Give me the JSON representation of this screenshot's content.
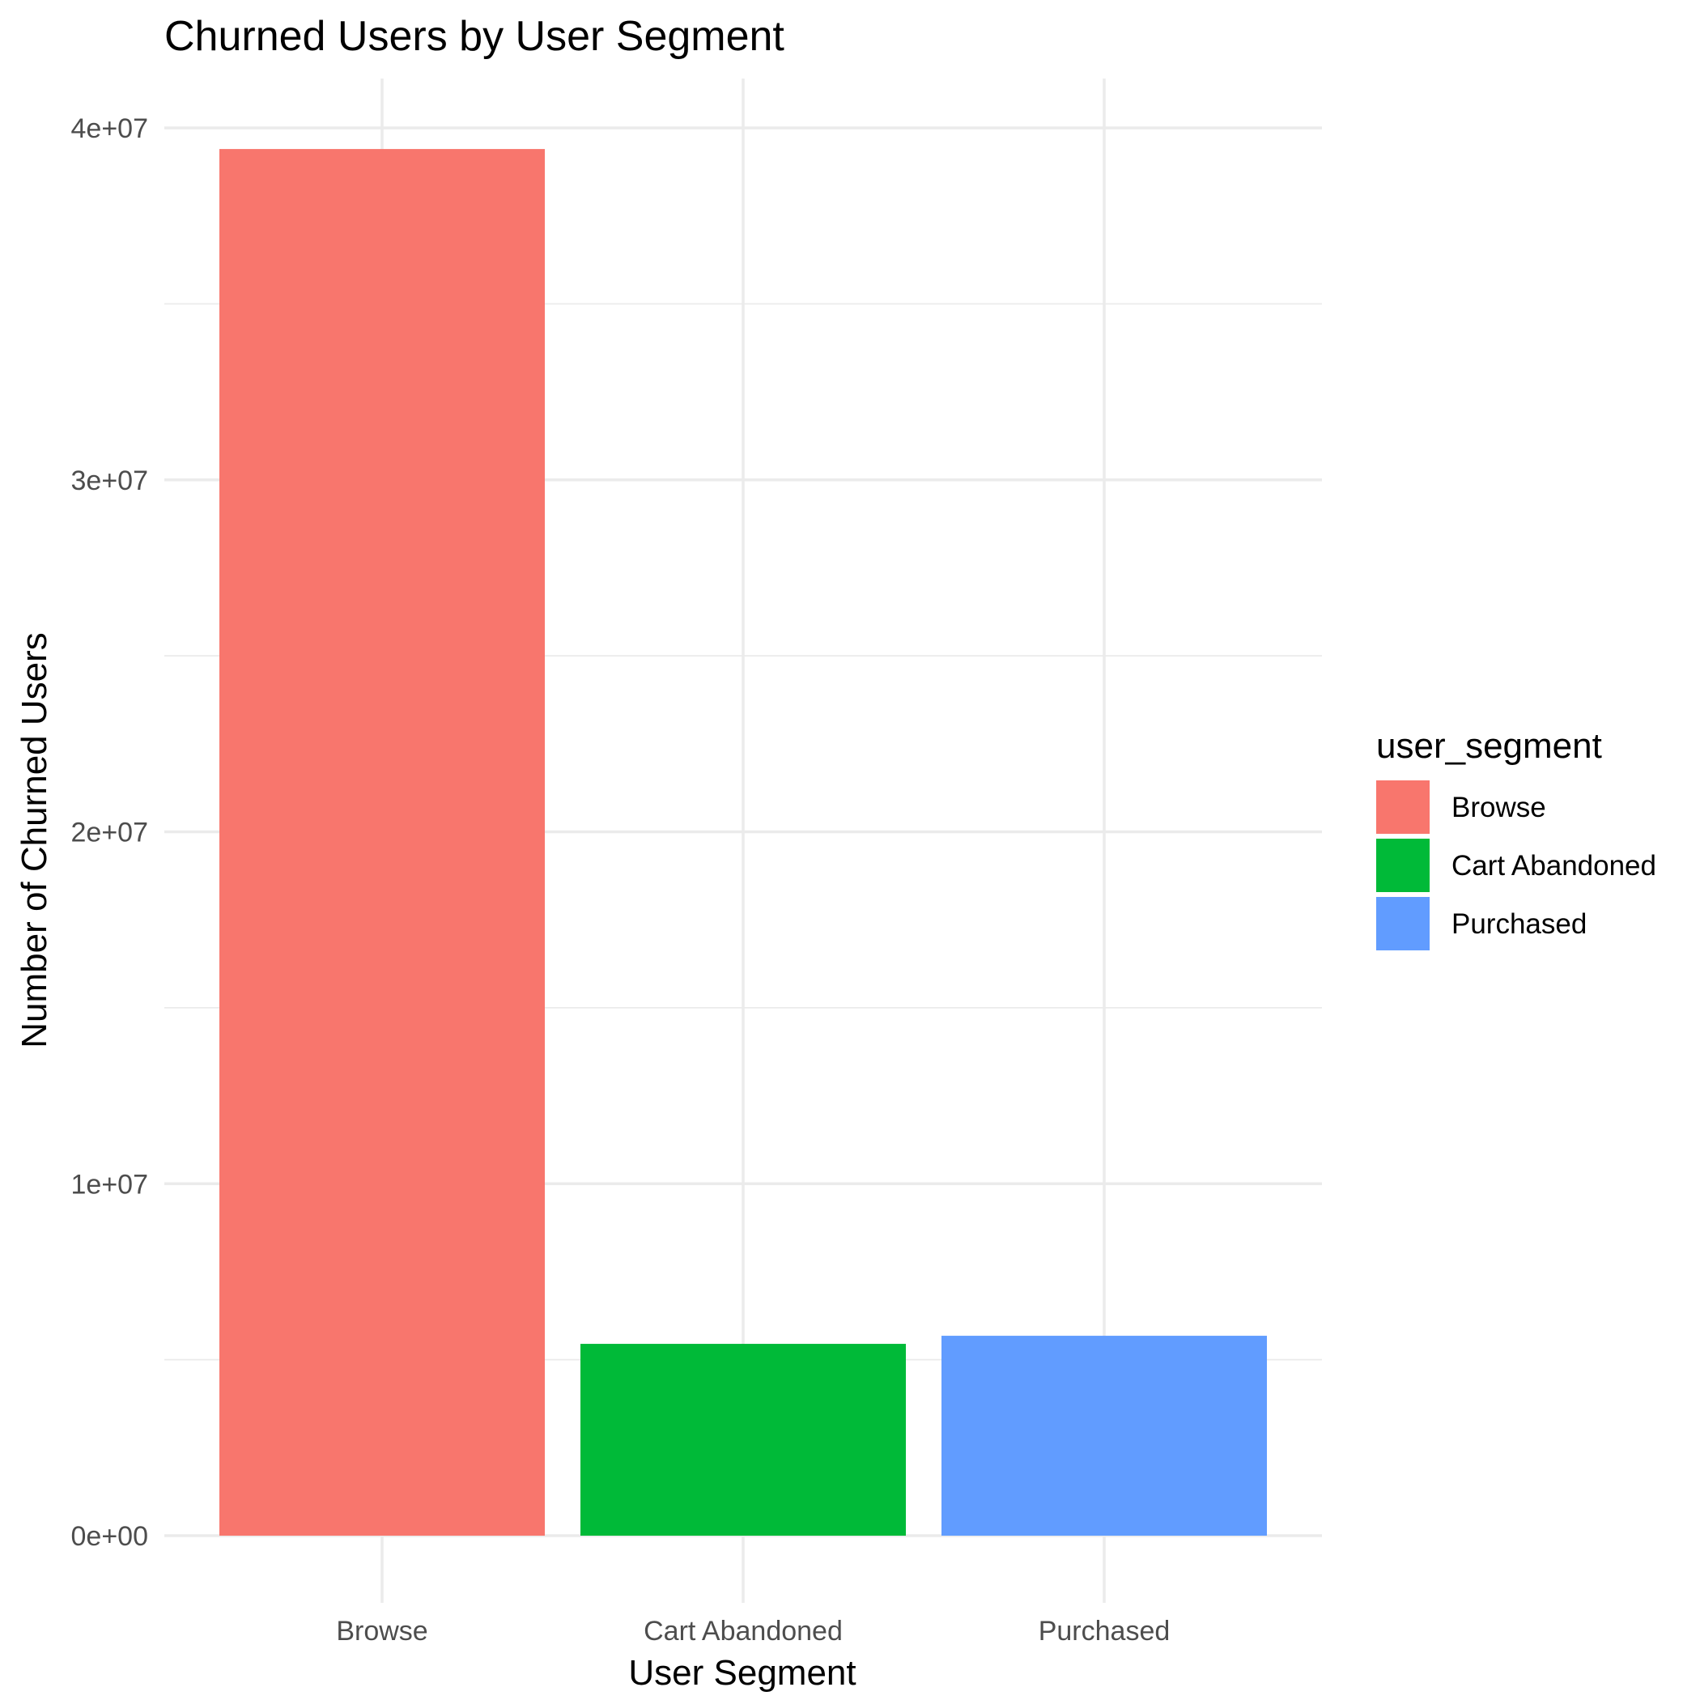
{
  "chart_data": {
    "type": "bar",
    "title": "Churned Users by User Segment",
    "xlabel": "User Segment",
    "ylabel": "Number of Churned Users",
    "categories": [
      "Browse",
      "Cart Abandoned",
      "Purchased"
    ],
    "values": [
      39400000,
      5450000,
      5680000
    ],
    "colors": [
      "#F8766D",
      "#00BA38",
      "#619CFF"
    ],
    "ylim": [
      0,
      40000000
    ],
    "yticks": [
      0,
      10000000,
      20000000,
      30000000,
      40000000
    ],
    "ytick_labels": [
      "0e+00",
      "1e+07",
      "2e+07",
      "3e+07",
      "4e+07"
    ],
    "grid": true,
    "legend": {
      "title": "user_segment",
      "position": "right",
      "entries": [
        "Browse",
        "Cart Abandoned",
        "Purchased"
      ]
    }
  }
}
